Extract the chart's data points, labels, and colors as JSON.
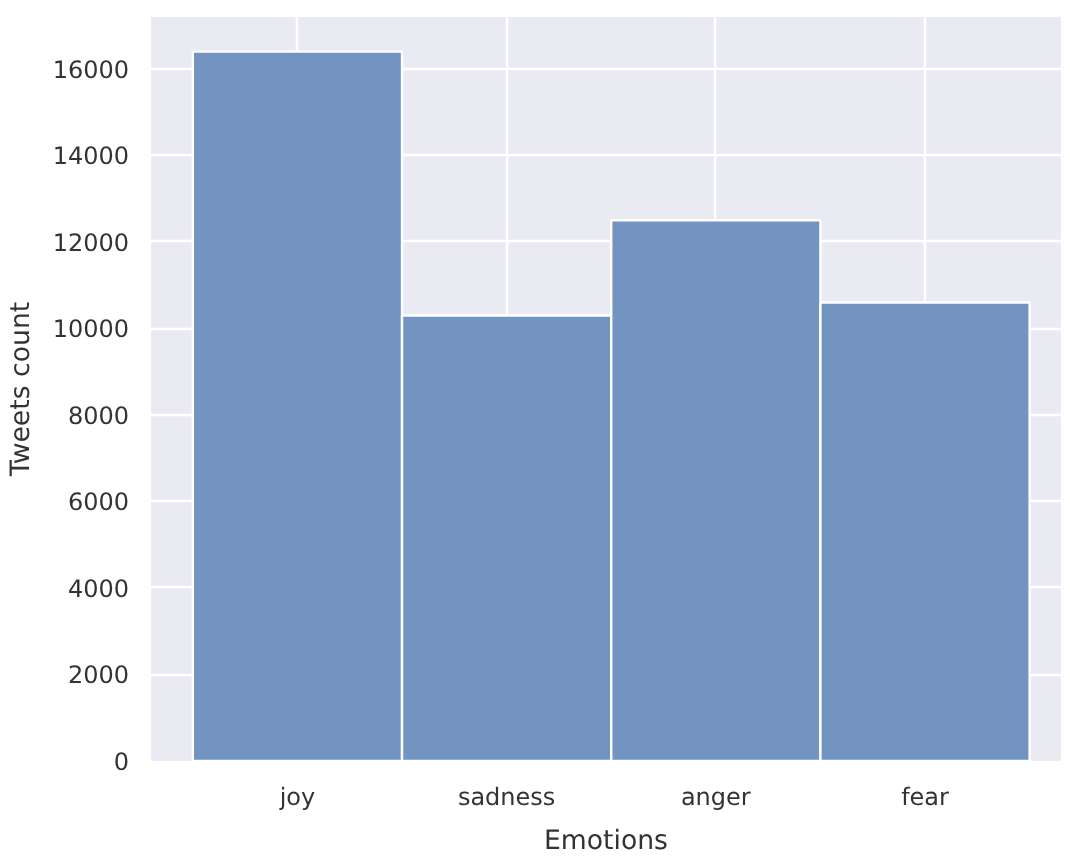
{
  "chart_data": {
    "type": "bar",
    "xlabel": "Emotions",
    "ylabel": "Tweets count",
    "categories": [
      "joy",
      "sadness",
      "anger",
      "fear"
    ],
    "values": [
      16400,
      10300,
      12500,
      10600
    ],
    "color": "#7393c1",
    "ylim": [
      0,
      17200
    ],
    "yticks": [
      0,
      2000,
      4000,
      6000,
      8000,
      10000,
      12000,
      14000,
      16000
    ],
    "grid": true
  }
}
